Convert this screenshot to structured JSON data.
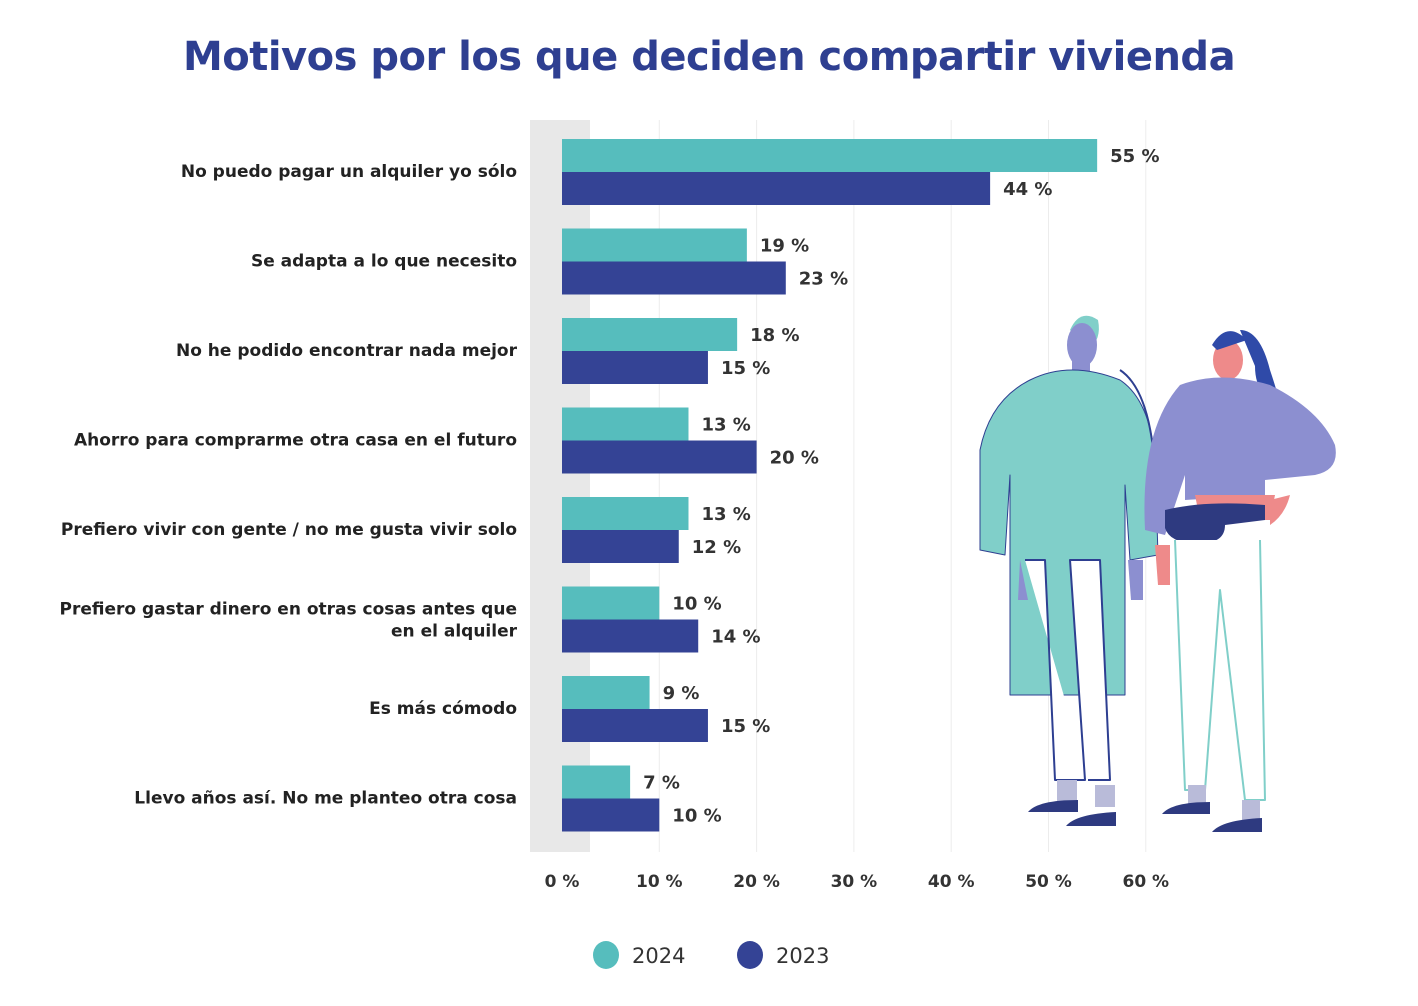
{
  "title": "Motivos por los que deciden compartir vivienda",
  "colors": {
    "2024": "#56bdbd",
    "2023": "#344395",
    "title": "#2e3f91"
  },
  "chart_data": {
    "type": "bar",
    "orientation": "horizontal",
    "title": "Motivos por los que deciden compartir vivienda",
    "categories": [
      "No puedo pagar un alquiler yo sólo",
      "Se adapta a lo que necesito",
      "No he podido encontrar nada mejor",
      "Ahorro para comprarme otra casa en el futuro",
      "Prefiero vivir con gente / no me gusta vivir solo",
      "Prefiero gastar dinero en otras cosas antes que en el alquiler",
      "Es más cómodo",
      "Llevo años así. No me planteo otra cosa"
    ],
    "series": [
      {
        "name": "2024",
        "values": [
          55,
          19,
          18,
          13,
          13,
          10,
          9,
          7
        ]
      },
      {
        "name": "2023",
        "values": [
          44,
          23,
          15,
          20,
          12,
          14,
          15,
          10
        ]
      }
    ],
    "xlim": [
      0,
      60
    ],
    "xticks": [
      "0 %",
      "10 %",
      "20 %",
      "30 %",
      "40 %",
      "50 %",
      "60 %"
    ],
    "value_suffix": " %",
    "grid": true,
    "legend": "bottom"
  }
}
